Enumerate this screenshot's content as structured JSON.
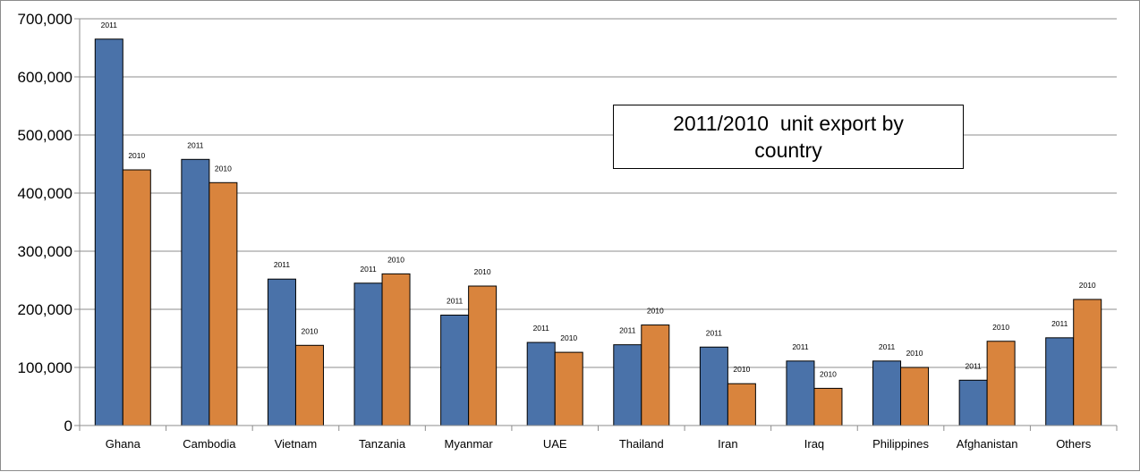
{
  "chart_data": {
    "type": "bar",
    "title": "2011/2010  unit export by country",
    "categories": [
      "Ghana",
      "Cambodia",
      "Vietnam",
      "Tanzania",
      "Myanmar",
      "UAE",
      "Thailand",
      "Iran",
      "Iraq",
      "Philippines",
      "Afghanistan",
      "Others"
    ],
    "series": [
      {
        "name": "2011",
        "color": "#4a72a9",
        "values": [
          665000,
          458000,
          252000,
          245000,
          190000,
          143000,
          139000,
          135000,
          111000,
          111000,
          78000,
          151000
        ]
      },
      {
        "name": "2010",
        "color": "#d9843d",
        "values": [
          440000,
          418000,
          138000,
          261000,
          240000,
          126000,
          173000,
          72000,
          64000,
          100000,
          145000,
          217000
        ]
      }
    ],
    "ylim": [
      0,
      700000
    ],
    "yticks": [
      "0",
      "100,000",
      "200,000",
      "300,000",
      "400,000",
      "500,000",
      "600,000",
      "700,000"
    ],
    "grid": true,
    "xlabel": "",
    "ylabel": ""
  }
}
